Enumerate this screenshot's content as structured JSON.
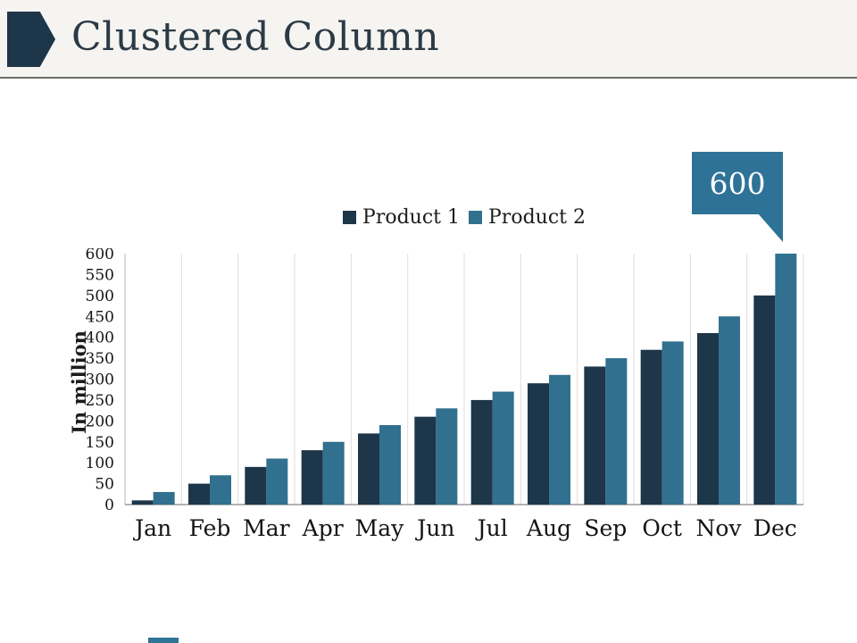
{
  "slide": {
    "title": "Clustered Column"
  },
  "chart_data": {
    "type": "bar",
    "title": "",
    "xlabel": "",
    "ylabel": "In million",
    "categories": [
      "Jan",
      "Feb",
      "Mar",
      "Apr",
      "May",
      "Jun",
      "Jul",
      "Aug",
      "Sep",
      "Oct",
      "Nov",
      "Dec"
    ],
    "series": [
      {
        "name": "Product 1",
        "color": "#1d3649",
        "values": [
          10,
          50,
          90,
          130,
          170,
          210,
          250,
          290,
          330,
          370,
          410,
          500
        ]
      },
      {
        "name": "Product 2",
        "color": "#31708e",
        "values": [
          30,
          70,
          110,
          150,
          190,
          230,
          270,
          310,
          350,
          390,
          450,
          600
        ]
      }
    ],
    "ylim": [
      0,
      600
    ],
    "yticks": [
      0,
      50,
      100,
      150,
      200,
      250,
      300,
      350,
      400,
      450,
      500,
      550,
      600
    ],
    "legend_position": "top-center",
    "grid": "vertical-light"
  },
  "callout": {
    "value": "600",
    "color": "#2e7397",
    "text_color": "#ffffff"
  },
  "colors": {
    "header_bg": "#f5f4f1",
    "title_text": "#2b3a45",
    "divider": "#6e6e6e",
    "accent_shape": "#1d3649",
    "footer_accent": "#2f7396"
  }
}
